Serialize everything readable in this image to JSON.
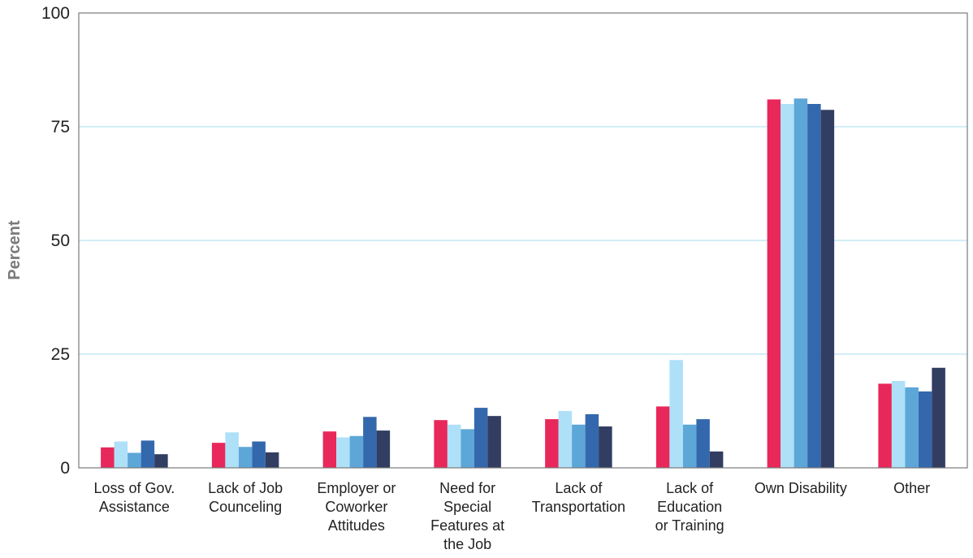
{
  "chart_data": {
    "type": "bar",
    "title": "",
    "xlabel": "",
    "ylabel": "Percent",
    "ylim": [
      0,
      100
    ],
    "yticks": [
      0,
      25,
      50,
      75,
      100
    ],
    "grid": true,
    "legend": "none",
    "categories": [
      [
        "Loss of Gov.",
        "Assistance"
      ],
      [
        "Lack of Job",
        "Counceling"
      ],
      [
        "Employer or",
        "Coworker",
        "Attitudes"
      ],
      [
        "Need for",
        "Special",
        "Features at",
        "the Job"
      ],
      [
        "Lack of",
        "Transportation"
      ],
      [
        "Lack of",
        "Education",
        "or Training"
      ],
      [
        "Own Disability"
      ],
      [
        "Other"
      ]
    ],
    "series": [
      {
        "color": "#e8285a",
        "values": [
          4.5,
          5.5,
          8.0,
          10.5,
          10.7,
          13.5,
          81.0,
          18.5
        ]
      },
      {
        "color": "#aee0f8",
        "values": [
          5.8,
          7.8,
          6.7,
          9.5,
          12.5,
          23.7,
          80.0,
          19.1
        ]
      },
      {
        "color": "#5da6d8",
        "values": [
          3.3,
          4.6,
          7.0,
          8.5,
          9.5,
          9.5,
          81.2,
          17.7
        ]
      },
      {
        "color": "#3468ad",
        "values": [
          6.0,
          5.8,
          11.2,
          13.2,
          11.8,
          10.7,
          80.0,
          16.8
        ]
      },
      {
        "color": "#323d62",
        "values": [
          3.0,
          3.4,
          8.2,
          11.4,
          9.1,
          3.6,
          78.7,
          22.0
        ]
      }
    ],
    "gridline_color": "#a6dcef",
    "axis_color": "#7a7a7a"
  }
}
